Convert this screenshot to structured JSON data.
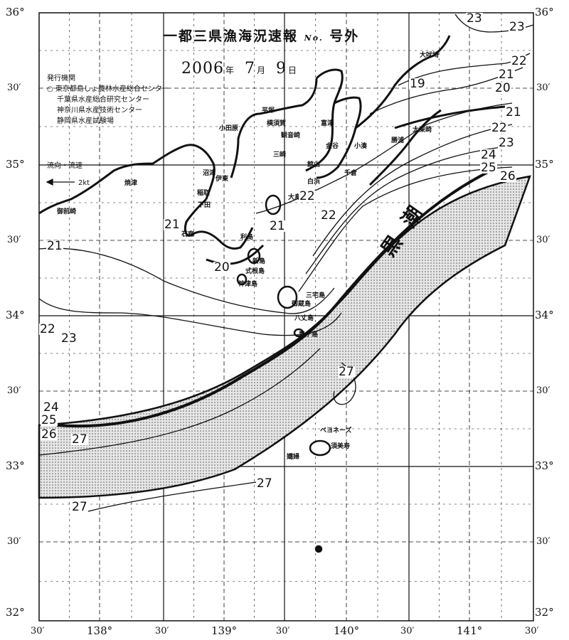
{
  "title": "一都三県漁海況速報",
  "issue_no": "No.",
  "issue_type": "号外",
  "date": {
    "year": "2006",
    "year_unit": "年",
    "month": "7",
    "month_unit": "月",
    "day": "9",
    "day_unit": "日"
  },
  "issuers": {
    "heading": "発行機関",
    "items": [
      "東京都島しょ農林水産総合センター",
      "千葉県水産総合研究センター",
      "神奈川県水産技術センター",
      "静岡県水産試験場"
    ]
  },
  "current_legend": {
    "label": "流向・流速",
    "speed": "2kt"
  },
  "kuroshio_label": "黒潮",
  "axis": {
    "lat_major": [
      "36°",
      "35°",
      "34°",
      "33°",
      "32°"
    ],
    "lat_minor": "30′",
    "lon_major": [
      "138°",
      "139°",
      "140°",
      "141°"
    ],
    "lon_minor": "30′"
  },
  "places": [
    "大吠埼",
    "平塚",
    "横須賀",
    "富津",
    "小田原",
    "観音崎",
    "金谷",
    "勝浦",
    "太東崎",
    "三崎",
    "館山",
    "小湊",
    "千倉",
    "白浜",
    "沼津",
    "伊東",
    "焼津",
    "稲取",
    "大島",
    "下田",
    "御前崎",
    "石廊",
    "利島",
    "新島",
    "式根島",
    "神津島",
    "三宅島",
    "御蔵島",
    "八丈島",
    "青ヶ島",
    "ベヨネーズ",
    "須美寿",
    "孀婦"
  ],
  "isotherm_labels": [
    "23",
    "23",
    "22",
    "21",
    "20",
    "19",
    "21",
    "22",
    "23",
    "24",
    "25",
    "26",
    "22",
    "22",
    "21",
    "21",
    "20",
    "21",
    "22",
    "23",
    "24",
    "25",
    "26",
    "27",
    "27",
    "27",
    "27"
  ],
  "colors": {
    "kuroshio_fill": "#d9d9d9",
    "ink": "#111111",
    "paper": "#ffffff"
  }
}
